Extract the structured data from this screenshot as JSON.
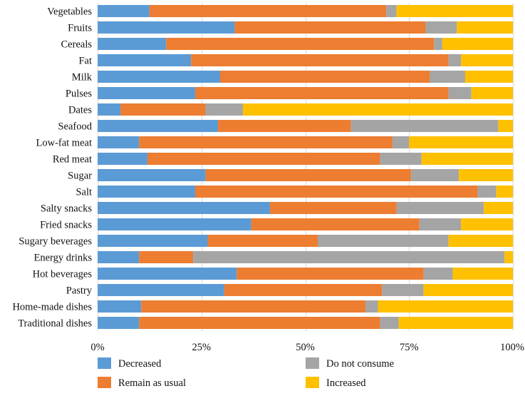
{
  "chart_data": {
    "type": "bar",
    "orientation": "horizontal",
    "stacked": true,
    "title": "",
    "xlabel": "",
    "ylabel": "",
    "xlim": [
      0,
      100
    ],
    "x_ticks": [
      "0%",
      "25%",
      "50%",
      "75%",
      "100%"
    ],
    "grid": true,
    "legend_position": "bottom",
    "categories": [
      "Vegetables",
      "Fruits",
      "Cereals",
      "Fat",
      "Milk",
      "Pulses",
      "Dates",
      "Seafood",
      "Low-fat meat",
      "Red meat",
      "Sugar",
      "Salt",
      "Salty snacks",
      "Fried snacks",
      "Sugary beverages",
      "Energy drinks",
      "Hot beverages",
      "Pastry",
      "Home-made dishes",
      "Traditional dishes"
    ],
    "series": [
      {
        "name": "Decreased",
        "color": "#5b9bd5",
        "values": [
          12.5,
          33,
          16.5,
          22.5,
          29.5,
          23.5,
          5.5,
          29,
          10,
          12,
          26,
          23.5,
          41.5,
          37,
          26.5,
          10,
          33.5,
          30.5,
          10.5,
          10
        ]
      },
      {
        "name": "Remain as usual",
        "color": "#ed7d31",
        "values": [
          57,
          46,
          64.5,
          62,
          50.5,
          61,
          20.5,
          32,
          61,
          56,
          49.5,
          68,
          30.5,
          40.5,
          26.5,
          13,
          45,
          38,
          54,
          58
        ]
      },
      {
        "name": "Do not consume",
        "color": "#a5a5a5",
        "values": [
          2.5,
          7.5,
          2,
          3,
          8.5,
          5.5,
          9,
          35.5,
          4,
          10,
          11.5,
          4.5,
          21,
          10,
          31.5,
          75,
          7,
          10,
          3,
          4.5
        ]
      },
      {
        "name": "Increased",
        "color": "#ffc000",
        "values": [
          28,
          13.5,
          17,
          12.5,
          11.5,
          10,
          65,
          3.5,
          25,
          22,
          13,
          4,
          7,
          12.5,
          15.5,
          2,
          14.5,
          21.5,
          32.5,
          27.5
        ]
      }
    ]
  }
}
